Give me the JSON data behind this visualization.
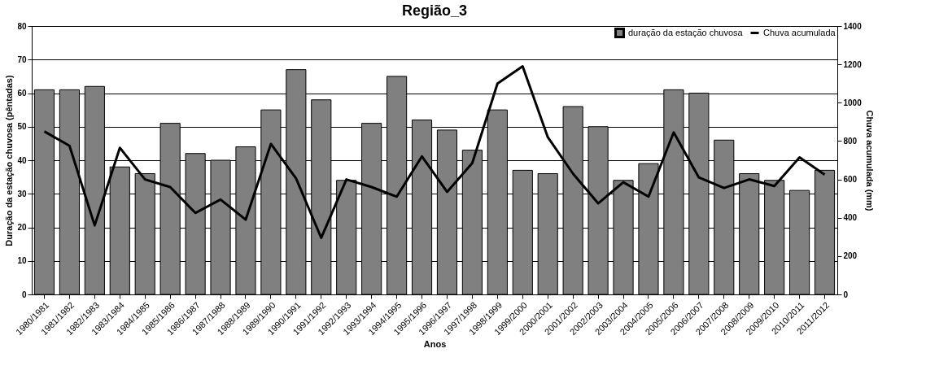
{
  "chart_data": {
    "type": "bar",
    "title": "Região_3",
    "xlabel": "Anos",
    "ylabel": "Duração da estação chuvosa (pêntadas)",
    "y2label": "Chuva acumulada (mm)",
    "categories": [
      "1980/1981",
      "1981/1982",
      "1982/1983",
      "1983/1984",
      "1984/1985",
      "1985/1986",
      "1986/1987",
      "1987/1988",
      "1988/1989",
      "1989/1990",
      "1990/1991",
      "1991/1992",
      "1992/1993",
      "1993/1994",
      "1994/1995",
      "1995/1996",
      "1996/1997",
      "1997/1998",
      "1998/1999",
      "1999/2000",
      "2000/2001",
      "2001/2002",
      "2002/2003",
      "2003/2004",
      "2004/2005",
      "2005/2006",
      "2006/2007",
      "2007/2008",
      "2008/2009",
      "2009/2010",
      "2010/2011",
      "2011/2012"
    ],
    "series": [
      {
        "name": "duração da estação chuvosa",
        "color": "#808080",
        "values": [
          61,
          61,
          62,
          38,
          36,
          51,
          42,
          40,
          44,
          55,
          67,
          58,
          34,
          51,
          65,
          52,
          49,
          43,
          55,
          37,
          36,
          56,
          50,
          34,
          39,
          61,
          60,
          46,
          36,
          34,
          31,
          37
        ]
      },
      {
        "name": "Chuva acumulada",
        "type": "line",
        "axis": "y2",
        "color": "#000000",
        "values": [
          850,
          775,
          360,
          765,
          600,
          560,
          425,
          495,
          390,
          785,
          605,
          295,
          600,
          560,
          510,
          720,
          535,
          685,
          1100,
          1190,
          820,
          630,
          475,
          585,
          510,
          845,
          610,
          555,
          600,
          565,
          715,
          625
        ]
      }
    ],
    "ylim": [
      0,
      80
    ],
    "yticks": [
      0,
      10,
      20,
      30,
      40,
      50,
      60,
      70,
      80
    ],
    "y2lim": [
      0,
      1400
    ],
    "y2ticks": [
      0,
      200,
      400,
      600,
      800,
      1000,
      1200,
      1400
    ],
    "grid": "y",
    "legend": "top right",
    "marker": "none",
    "line_style": "solid"
  }
}
